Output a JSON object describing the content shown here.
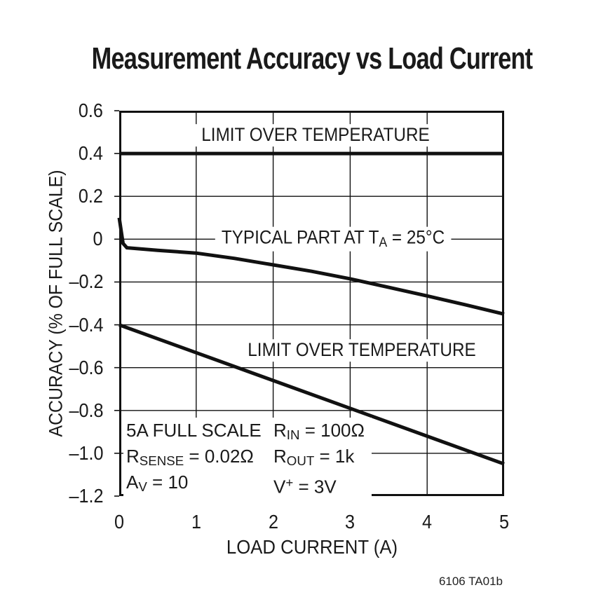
{
  "page": {
    "footer_code": "6106 TA01b"
  },
  "chart_data": {
    "type": "line",
    "title": "Measurement Accuracy vs Load Current",
    "xlabel": "LOAD CURRENT (A)",
    "ylabel": "ACCURACY (% OF FULL SCALE)",
    "xlim": [
      0,
      5
    ],
    "ylim": [
      -1.2,
      0.6
    ],
    "grid": true,
    "line_color": "#111111",
    "x_ticks": [
      0,
      1,
      2,
      3,
      4,
      5
    ],
    "x_tick_labels": [
      "0",
      "1",
      "2",
      "3",
      "4",
      "5"
    ],
    "y_ticks": [
      0.6,
      0.4,
      0.2,
      0,
      -0.2,
      -0.4,
      -0.6,
      -0.8,
      -1.0,
      -1.2
    ],
    "y_tick_labels": [
      "0.6",
      "0.4",
      "0.2",
      "0",
      "–0.2",
      "–0.4",
      "–0.6",
      "–0.8",
      "–1.0",
      "–1.2"
    ],
    "series": [
      {
        "name": "limit-over-temperature-upper",
        "points": [
          [
            0,
            0.4
          ],
          [
            5,
            0.4
          ]
        ]
      },
      {
        "name": "typical-part-25c",
        "points": [
          [
            0,
            0.1
          ],
          [
            0.05,
            -0.02
          ],
          [
            0.1,
            -0.04
          ],
          [
            0.5,
            -0.052
          ],
          [
            1,
            -0.065
          ],
          [
            1.5,
            -0.09
          ],
          [
            2,
            -0.12
          ],
          [
            2.5,
            -0.15
          ],
          [
            3,
            -0.185
          ],
          [
            3.5,
            -0.225
          ],
          [
            4,
            -0.265
          ],
          [
            4.5,
            -0.307
          ],
          [
            5,
            -0.35
          ]
        ]
      },
      {
        "name": "limit-over-temperature-lower",
        "points": [
          [
            0,
            -0.4
          ],
          [
            5,
            -1.05
          ]
        ]
      }
    ],
    "annotations": [
      {
        "name": "upper-limit-label",
        "x": 2.55,
        "y": 0.485,
        "segments": [
          {
            "t": "LIMIT OVER TEMPERATURE"
          }
        ]
      },
      {
        "name": "typical-part-label",
        "x": 2.78,
        "y": 0.0,
        "segments": [
          {
            "t": "TYPICAL PART AT T"
          },
          {
            "t": "A",
            "m": "sub"
          },
          {
            "t": " = 25°C"
          }
        ]
      },
      {
        "name": "lower-limit-label",
        "x": 3.15,
        "y": -0.52,
        "segments": [
          {
            "t": "LIMIT OVER TEMPERATURE"
          }
        ]
      }
    ],
    "conditions": {
      "left_lines": [
        [
          {
            "t": "5A FULL SCALE"
          }
        ],
        [
          {
            "t": "R"
          },
          {
            "t": "SENSE",
            "m": "sub"
          },
          {
            "t": " = 0.02Ω"
          }
        ],
        [
          {
            "t": "A"
          },
          {
            "t": "V",
            "m": "sub"
          },
          {
            "t": " = 10"
          }
        ]
      ],
      "right_lines": [
        [
          {
            "t": "R"
          },
          {
            "t": "IN",
            "m": "sub"
          },
          {
            "t": " = 100Ω"
          }
        ],
        [
          {
            "t": "R"
          },
          {
            "t": "OUT",
            "m": "sub"
          },
          {
            "t": " = 1k"
          }
        ],
        [
          {
            "t": "V"
          },
          {
            "t": "+",
            "m": "sup"
          },
          {
            "t": " = 3V"
          }
        ]
      ]
    }
  }
}
